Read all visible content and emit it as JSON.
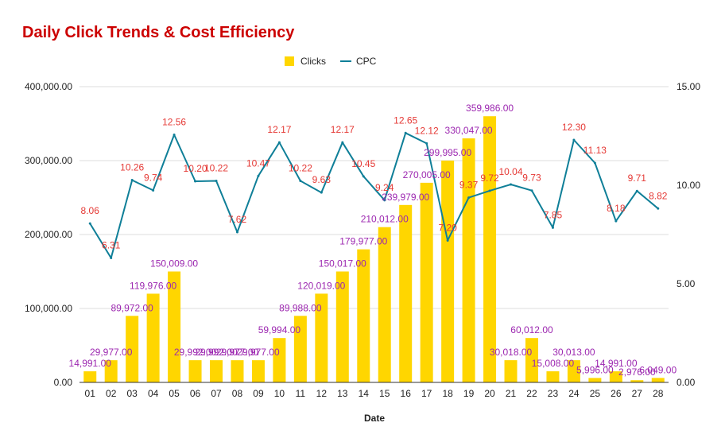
{
  "chart_data": {
    "type": "bar",
    "title": "Daily Click Trends & Cost Efficiency",
    "xlabel": "Date",
    "ylabel": "",
    "y2label": "",
    "categories": [
      "01",
      "02",
      "03",
      "04",
      "05",
      "06",
      "07",
      "08",
      "09",
      "10",
      "11",
      "12",
      "13",
      "14",
      "15",
      "16",
      "17",
      "18",
      "19",
      "20",
      "21",
      "22",
      "23",
      "24",
      "25",
      "26",
      "27",
      "28"
    ],
    "ylim": [
      0,
      400000
    ],
    "y_ticks": [
      "0.00",
      "100,000.00",
      "200,000.00",
      "300,000.00",
      "400,000.00"
    ],
    "y2lim": [
      0,
      15
    ],
    "y2_ticks": [
      "0.00",
      "5.00",
      "10.00",
      "15.00"
    ],
    "grid": true,
    "legend_position": "top",
    "series": [
      {
        "name": "Clicks",
        "type": "bar",
        "color": "#FFD600",
        "label_color": "#9C27B0",
        "axis": "left",
        "values": [
          14991,
          29977,
          89972,
          119976,
          150009,
          29992,
          29992,
          29977,
          29977,
          59994,
          89988,
          120019,
          150017,
          179977,
          210012,
          239979,
          270005,
          299995,
          330047,
          359986,
          30018,
          60012,
          15008,
          30013,
          5996,
          14991,
          2976,
          6049
        ],
        "labels": [
          "14,991.00",
          "29,977.00",
          "89,972.00",
          "119,976.00",
          "150,009.00",
          "29,992.00",
          "29,992.00",
          "29,977.00",
          "29,977.00",
          "59,994.00",
          "89,988.00",
          "120,019.00",
          "150,017.00",
          "179,977.00",
          "210,012.00",
          "239,979.00",
          "270,005.00",
          "299,995.00",
          "330,047.00",
          "359,986.00",
          "30,018.00",
          "60,012.00",
          "15,008.00",
          "30,013.00",
          "5,996.00",
          "14,991.00",
          "2,976.00",
          "6,049.00"
        ]
      },
      {
        "name": "CPC",
        "type": "line",
        "color": "#0F7F98",
        "label_color": "#E53935",
        "axis": "right",
        "values": [
          8.06,
          6.31,
          10.26,
          9.74,
          12.56,
          10.2,
          10.22,
          7.62,
          10.47,
          12.17,
          10.22,
          9.63,
          12.17,
          10.45,
          9.24,
          12.65,
          12.12,
          7.2,
          9.37,
          9.72,
          10.04,
          9.73,
          7.85,
          12.3,
          11.13,
          8.18,
          9.71,
          8.82
        ],
        "labels": [
          "8.06",
          "6.31",
          "10.26",
          "9.74",
          "12.56",
          "10.20",
          "10.22",
          "7.62",
          "10.47",
          "12.17",
          "10.22",
          "9.63",
          "12.17",
          "10.45",
          "9.24",
          "12.65",
          "12.12",
          "7.20",
          "9.37",
          "9.72",
          "10.04",
          "9.73",
          "7.85",
          "12.30",
          "11.13",
          "8.18",
          "9.71",
          "8.82"
        ]
      }
    ]
  },
  "colors": {
    "title": "#CC0000",
    "grid": "#DDDDDD",
    "axis": "#333333"
  }
}
